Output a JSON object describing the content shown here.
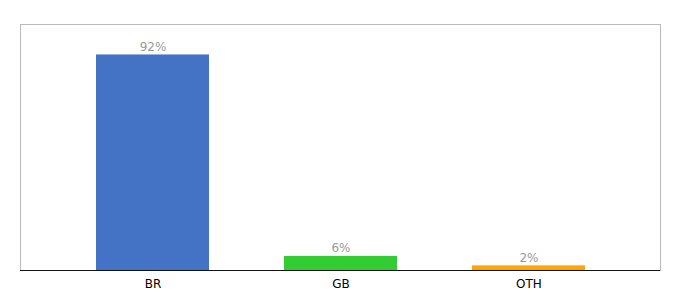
{
  "chart_data": {
    "type": "bar",
    "categories": [
      "BR",
      "GB",
      "OTH"
    ],
    "values": [
      92,
      6,
      2
    ],
    "value_labels": [
      "92%",
      "6%",
      "2%"
    ],
    "colors": [
      "#4472C4",
      "#33CC33",
      "#FFA500"
    ],
    "ylim": [
      0,
      105
    ],
    "data_labels": true,
    "tick_labels": "x",
    "grid": false
  }
}
